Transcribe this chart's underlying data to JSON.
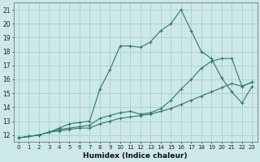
{
  "xlabel": "Humidex (Indice chaleur)",
  "xlim": [
    -0.5,
    23.5
  ],
  "ylim": [
    11.5,
    21.5
  ],
  "xticks": [
    0,
    1,
    2,
    3,
    4,
    5,
    6,
    7,
    8,
    9,
    10,
    11,
    12,
    13,
    14,
    15,
    16,
    17,
    18,
    19,
    20,
    21,
    22,
    23
  ],
  "yticks": [
    12,
    13,
    14,
    15,
    16,
    17,
    18,
    19,
    20,
    21
  ],
  "background_color": "#cce8e8",
  "grid_color": "#aacfcf",
  "line_color": "#2d7a6e",
  "series": [
    {
      "x": [
        0,
        1,
        2,
        3,
        4,
        5,
        6,
        7,
        8,
        9,
        10,
        11,
        12,
        13,
        14,
        15,
        16,
        17,
        18,
        19,
        20,
        21,
        22,
        23
      ],
      "y": [
        11.8,
        11.9,
        12.0,
        12.2,
        12.5,
        12.8,
        12.9,
        13.0,
        15.3,
        16.7,
        18.4,
        18.4,
        18.3,
        18.7,
        19.5,
        20.0,
        21.0,
        19.5,
        18.0,
        17.5,
        16.1,
        15.1,
        14.3,
        15.5
      ]
    },
    {
      "x": [
        0,
        1,
        2,
        3,
        4,
        5,
        6,
        7,
        8,
        9,
        10,
        11,
        12,
        13,
        14,
        15,
        16,
        17,
        18,
        19,
        20,
        21,
        22,
        23
      ],
      "y": [
        11.8,
        11.9,
        12.0,
        12.2,
        12.4,
        12.5,
        12.6,
        12.7,
        13.2,
        13.4,
        13.6,
        13.7,
        13.5,
        13.6,
        13.9,
        14.5,
        15.3,
        16.0,
        16.8,
        17.3,
        17.5,
        17.5,
        15.5,
        15.8
      ]
    },
    {
      "x": [
        0,
        1,
        2,
        3,
        4,
        5,
        6,
        7,
        8,
        9,
        10,
        11,
        12,
        13,
        14,
        15,
        16,
        17,
        18,
        19,
        20,
        21,
        22,
        23
      ],
      "y": [
        11.8,
        11.9,
        12.0,
        12.2,
        12.3,
        12.4,
        12.5,
        12.5,
        12.8,
        13.0,
        13.2,
        13.3,
        13.4,
        13.5,
        13.7,
        13.9,
        14.2,
        14.5,
        14.8,
        15.1,
        15.4,
        15.7,
        15.5,
        15.8
      ]
    }
  ]
}
